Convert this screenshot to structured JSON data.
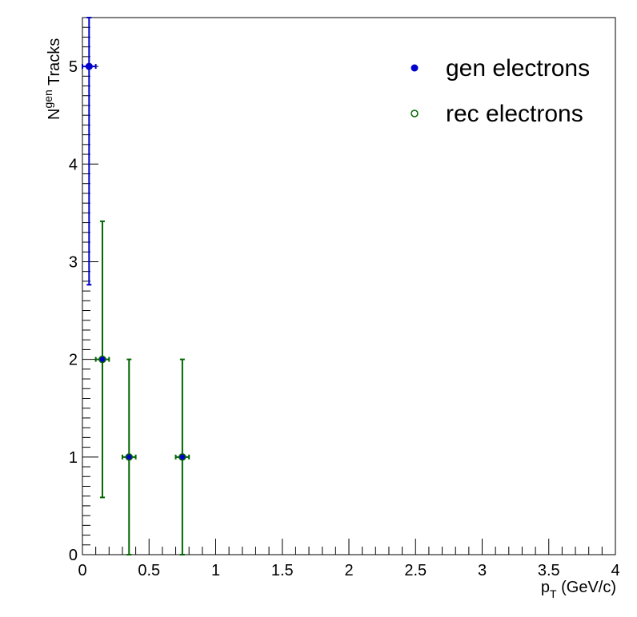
{
  "chart_data": {
    "type": "scatter",
    "title": "",
    "xlabel": {
      "main": "p",
      "sub": "T",
      "tail": " (GeV/c)"
    },
    "ylabel": {
      "main": "N",
      "sup": "gen",
      "tail": " Tracks"
    },
    "xlim": [
      0,
      4
    ],
    "ylim": [
      0,
      5.5
    ],
    "x_ticks": [
      "0",
      "0.5",
      "1",
      "1.5",
      "2",
      "2.5",
      "3",
      "3.5",
      "4"
    ],
    "y_ticks": [
      "0",
      "1",
      "2",
      "3",
      "4",
      "5"
    ],
    "grid": false,
    "legend_position": "top-right",
    "series": [
      {
        "name": "gen electrons",
        "marker": "filled-circle",
        "color": "#0000cc",
        "points": [
          {
            "x": 0.05,
            "y": 5,
            "xerr": 0.05,
            "yerr": 2.236
          }
        ]
      },
      {
        "name": "rec electrons",
        "marker": "open-circle",
        "color": "#006600",
        "points": [
          {
            "x": 0.15,
            "y": 2,
            "xerr": 0.05,
            "yerr": 1.414
          },
          {
            "x": 0.35,
            "y": 1,
            "xerr": 0.05,
            "yerr": 1.0
          },
          {
            "x": 0.75,
            "y": 1,
            "xerr": 0.05,
            "yerr": 1.0
          }
        ]
      }
    ],
    "overlay_marker_color": "#0000cc"
  }
}
